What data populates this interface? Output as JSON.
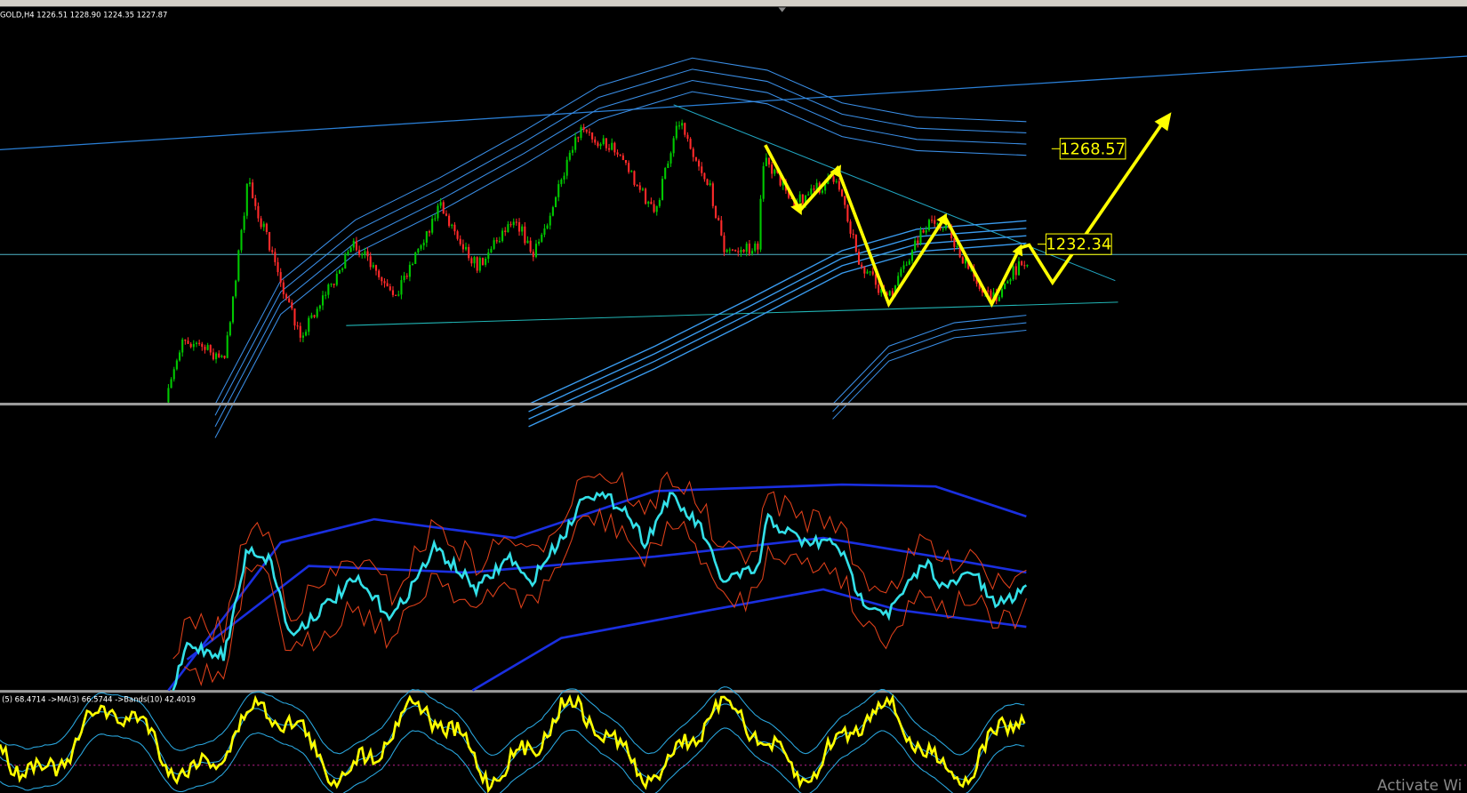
{
  "header": {
    "symbol_info": "GOLD,H4  1226.51 1228.90 1224.35 1227.87"
  },
  "price_labels": [
    "1268.57",
    "1232.34"
  ],
  "indicator": {
    "info": "(5) 68.4714 ->MA(3) 66.5744 ->Bands(10) 42.4019"
  },
  "watermark": "Activate Wi"
}
